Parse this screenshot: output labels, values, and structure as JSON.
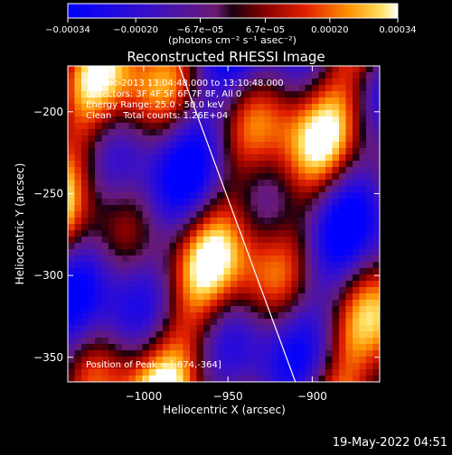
{
  "chart_data": {
    "type": "heatmap",
    "title": "Reconstructed RHESSI Image",
    "xlabel": "Heliocentric X (arcsec)",
    "ylabel": "Heliocentric Y (arcsec)",
    "xlim": [
      -1045,
      -860
    ],
    "ylim": [
      -365,
      -172
    ],
    "x_ticks": [
      -1000,
      -950,
      -900
    ],
    "x_tick_labels": [
      "−1000",
      "−950",
      "−900"
    ],
    "y_ticks": [
      -200,
      -250,
      -300,
      -350
    ],
    "y_tick_labels": [
      "−200",
      "−250",
      "−300",
      "−350"
    ],
    "colorbar": {
      "range": [
        -0.00034,
        0.00034
      ],
      "tick_values": [
        -0.00034,
        -0.0002,
        -6.7e-05,
        6.7e-05,
        0.0002,
        0.00034
      ],
      "tick_labels": [
        "−0.00034",
        "−0.00020",
        "−6.7e−05",
        "6.7e−05",
        "0.00020",
        "0.00034"
      ],
      "label": "(photons cm⁻² s⁻¹ asec⁻²)",
      "colormap": "blue-purple-red-yellow-white"
    },
    "limb_line": {
      "x": [
        -979,
        -910
      ],
      "y": [
        -172,
        -365
      ]
    },
    "annotations": [
      "19-Dec-2013 13:04:48.000 to 13:10:48.000",
      "Detectors: 3F 4F 5F 6F 7F 8F, All 0",
      "Energy Range: 25.0 - 50.0 keV",
      "Clean    Total counts: 1.26E+04",
      "Position of Peak = [-874,-364]"
    ],
    "peak": {
      "x": -874,
      "y": -364
    }
  },
  "footer_timestamp": "19-May-2022 04:51"
}
